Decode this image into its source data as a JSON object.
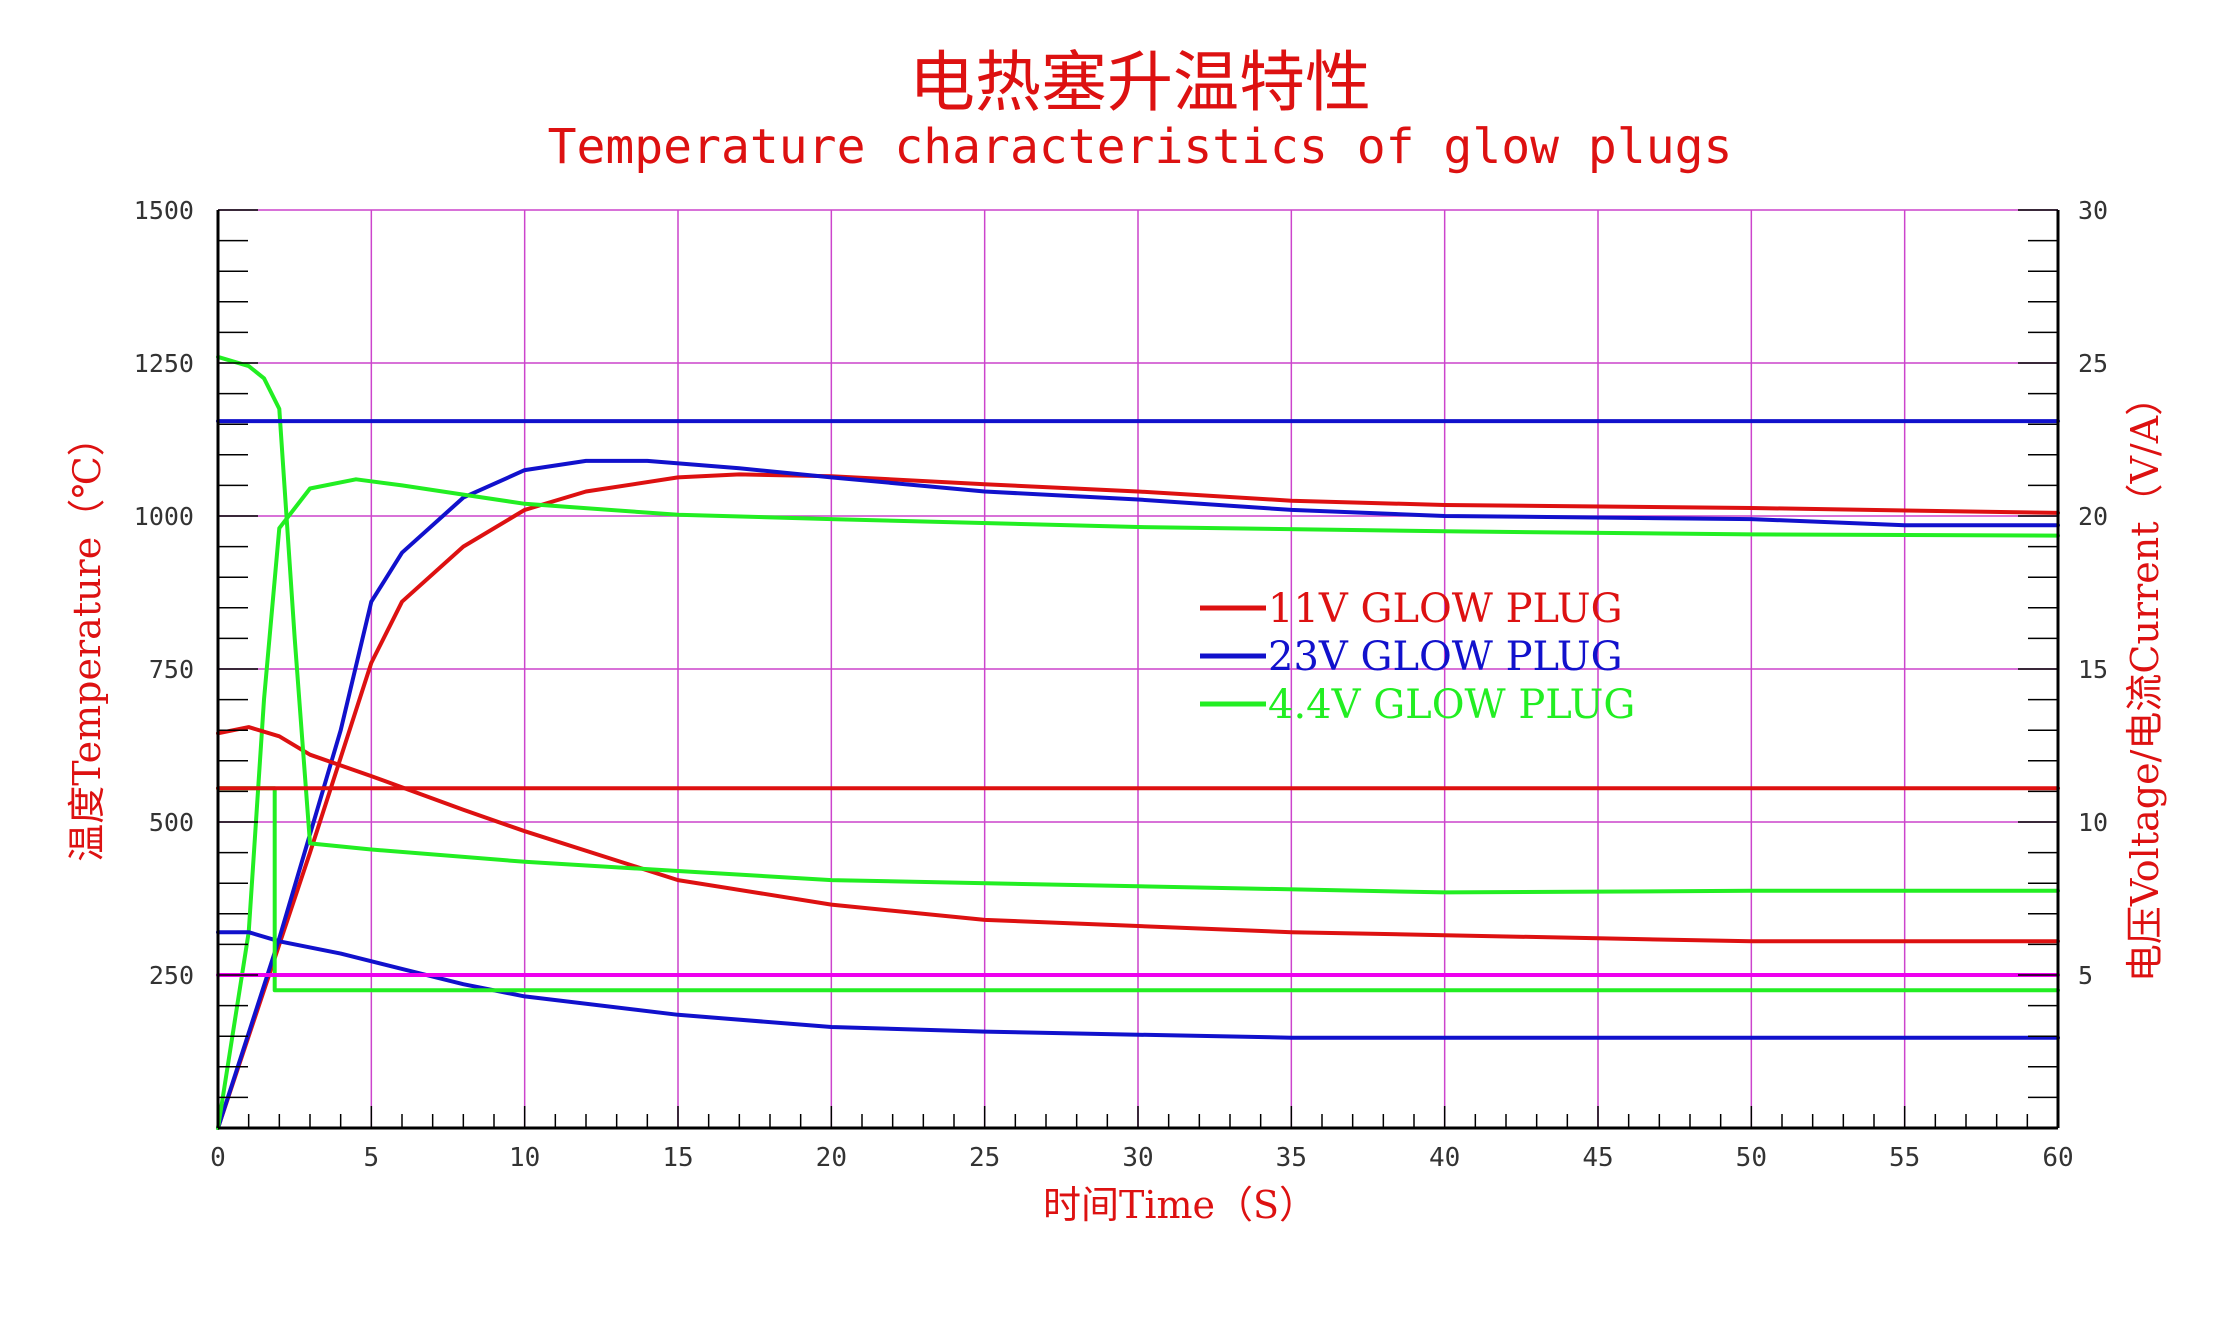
{
  "chart_data": {
    "type": "line",
    "title": "电热塞升温特性",
    "subtitle": "Temperature characteristics of glow plugs",
    "xlabel": "时间Time（S）",
    "ylabel_left": "温度Temperature（℃）",
    "ylabel_right": "电压Voltage/电流Current（V/A）",
    "xlim": [
      0,
      60
    ],
    "ylim_left": [
      0,
      1500
    ],
    "ylim_right": [
      0,
      30
    ],
    "x_ticks": [
      "0",
      "5",
      "10",
      "15",
      "20",
      "25",
      "30",
      "35",
      "40",
      "45",
      "50",
      "55",
      "60"
    ],
    "y_left_ticks": [
      "250",
      "500",
      "750",
      "1000",
      "1250",
      "1500"
    ],
    "y_right_ticks": [
      "5",
      "10",
      "15",
      "20",
      "25",
      "30"
    ],
    "grid": true,
    "legend_position": "center-right",
    "colors": {
      "red": "#dd1111",
      "blue": "#1111cc",
      "green": "#22ee22",
      "magenta": "#ee00ee",
      "grid": "#cc44cc",
      "axis": "#000000",
      "title": "#dd1111"
    },
    "legend": [
      {
        "label": "11V GLOW PLUG",
        "color": "#dd1111"
      },
      {
        "label": "23V GLOW PLUG",
        "color": "#1111cc"
      },
      {
        "label": "4.4V GLOW PLUG",
        "color": "#22ee22"
      }
    ],
    "series": [
      {
        "color": "#dd1111",
        "axis": "left",
        "kind": "temperature",
        "points": [
          [
            0,
            0
          ],
          [
            3,
            450
          ],
          [
            5,
            760
          ],
          [
            6,
            860
          ],
          [
            8,
            950
          ],
          [
            10,
            1010
          ],
          [
            12,
            1040
          ],
          [
            15,
            1063
          ],
          [
            17,
            1068
          ],
          [
            20,
            1065
          ],
          [
            25,
            1052
          ],
          [
            30,
            1040
          ],
          [
            35,
            1025
          ],
          [
            40,
            1018
          ],
          [
            50,
            1013
          ],
          [
            60,
            1005
          ]
        ]
      },
      {
        "color": "#1111cc",
        "axis": "left",
        "kind": "temperature",
        "points": [
          [
            0,
            0
          ],
          [
            2,
            310
          ],
          [
            4,
            650
          ],
          [
            5,
            860
          ],
          [
            6,
            940
          ],
          [
            8,
            1030
          ],
          [
            10,
            1075
          ],
          [
            12,
            1090
          ],
          [
            14,
            1090
          ],
          [
            17,
            1078
          ],
          [
            20,
            1063
          ],
          [
            25,
            1040
          ],
          [
            30,
            1027
          ],
          [
            35,
            1010
          ],
          [
            40,
            1000
          ],
          [
            50,
            995
          ],
          [
            55,
            985
          ],
          [
            60,
            985
          ]
        ]
      },
      {
        "color": "#22ee22",
        "axis": "left",
        "kind": "temperature",
        "points": [
          [
            0,
            0
          ],
          [
            1,
            320
          ],
          [
            1.5,
            700
          ],
          [
            2,
            980
          ],
          [
            3,
            1045
          ],
          [
            4.5,
            1060
          ],
          [
            6,
            1050
          ],
          [
            8,
            1035
          ],
          [
            10,
            1020
          ],
          [
            15,
            1002
          ],
          [
            20,
            995
          ],
          [
            30,
            982
          ],
          [
            40,
            975
          ],
          [
            50,
            970
          ],
          [
            60,
            968
          ]
        ]
      },
      {
        "color": "#dd1111",
        "axis": "right",
        "kind": "current",
        "points": [
          [
            0,
            12.9
          ],
          [
            1,
            13.1
          ],
          [
            2,
            12.8
          ],
          [
            3,
            12.2
          ],
          [
            5,
            11.5
          ],
          [
            8,
            10.4
          ],
          [
            10,
            9.7
          ],
          [
            15,
            8.1
          ],
          [
            20,
            7.3
          ],
          [
            25,
            6.8
          ],
          [
            30,
            6.6
          ],
          [
            35,
            6.4
          ],
          [
            40,
            6.3
          ],
          [
            45,
            6.2
          ],
          [
            50,
            6.1
          ],
          [
            52,
            6.1
          ],
          [
            60,
            6.1
          ]
        ]
      },
      {
        "color": "#1111cc",
        "axis": "right",
        "kind": "current",
        "points": [
          [
            0,
            6.4
          ],
          [
            1,
            6.4
          ],
          [
            2,
            6.1
          ],
          [
            4,
            5.7
          ],
          [
            6,
            5.2
          ],
          [
            8,
            4.7
          ],
          [
            10,
            4.3
          ],
          [
            15,
            3.7
          ],
          [
            20,
            3.3
          ],
          [
            25,
            3.15
          ],
          [
            30,
            3.05
          ],
          [
            35,
            2.95
          ],
          [
            40,
            2.95
          ],
          [
            50,
            2.95
          ],
          [
            60,
            2.95
          ]
        ]
      },
      {
        "color": "#22ee22",
        "axis": "right",
        "kind": "current",
        "points": [
          [
            0,
            25.2
          ],
          [
            1,
            24.9
          ],
          [
            1.5,
            24.5
          ],
          [
            2,
            23.5
          ],
          [
            2.5,
            16
          ],
          [
            3,
            9.3
          ],
          [
            5,
            9.1
          ],
          [
            10,
            8.7
          ],
          [
            15,
            8.4
          ],
          [
            20,
            8.1
          ],
          [
            30,
            7.9
          ],
          [
            40,
            7.7
          ],
          [
            50,
            7.75
          ],
          [
            60,
            7.75
          ]
        ]
      },
      {
        "color": "#22ee22",
        "axis": "right",
        "kind": "voltage",
        "points": [
          [
            0,
            11.1
          ],
          [
            1.85,
            11.1
          ],
          [
            1.85,
            4.5
          ],
          [
            60,
            4.5
          ]
        ]
      },
      {
        "color": "#dd1111",
        "axis": "right",
        "kind": "voltage",
        "points": [
          [
            0,
            11.1
          ],
          [
            60,
            11.1
          ]
        ]
      },
      {
        "color": "#1111cc",
        "axis": "right",
        "kind": "voltage",
        "points": [
          [
            0,
            23.1
          ],
          [
            60,
            23.1
          ]
        ]
      },
      {
        "color": "#ee00ee",
        "axis": "right",
        "kind": "reference",
        "points": [
          [
            0,
            5
          ],
          [
            60,
            5
          ]
        ]
      }
    ]
  }
}
